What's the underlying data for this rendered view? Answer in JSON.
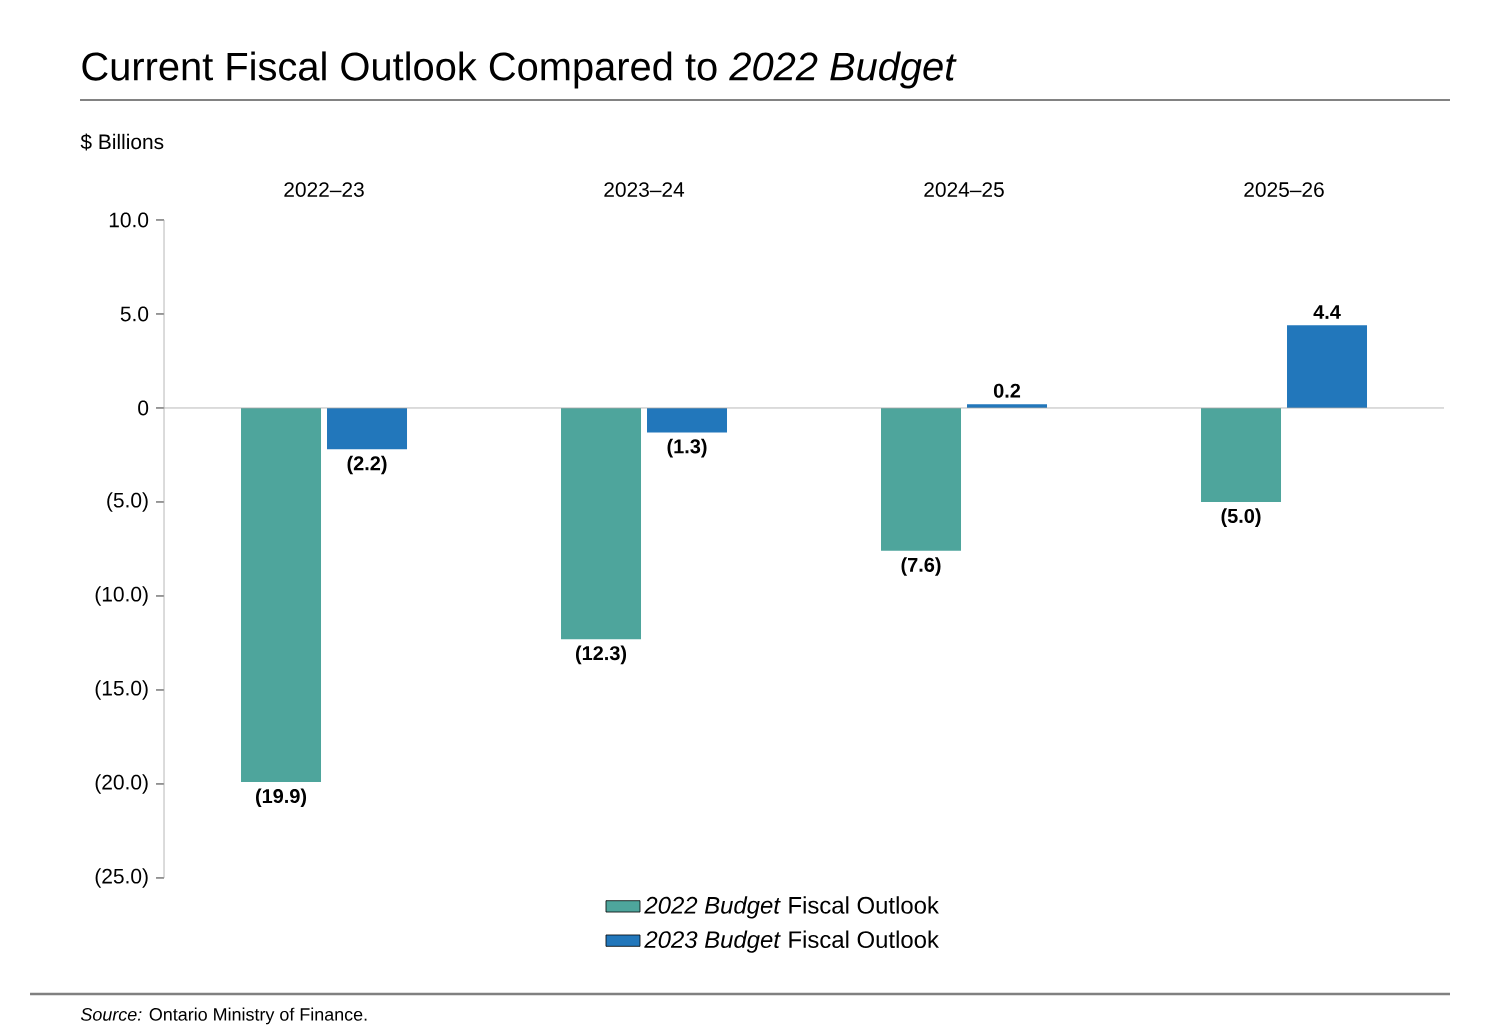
{
  "chart_data": {
    "type": "bar",
    "title": "Current Fiscal Outlook Compared to *2022 Budget*",
    "ylabel": "$ Billions",
    "categories": [
      "2022–23",
      "2023–24",
      "2024–25",
      "2025–26"
    ],
    "series": [
      {
        "name": "*2022 Budget* Fiscal Outlook",
        "color": "#4ea59c",
        "values": [
          -19.9,
          -12.3,
          -7.6,
          -5.0
        ],
        "value_labels": [
          "(19.9)",
          "(12.3)",
          "(7.6)",
          "(5.0)"
        ]
      },
      {
        "name": "*2023 Budget* Fiscal Outlook",
        "color": "#2277bb",
        "values": [
          -2.2,
          -1.3,
          0.2,
          4.4
        ],
        "value_labels": [
          "(2.2)",
          "(1.3)",
          "0.2",
          "4.4"
        ]
      }
    ],
    "ylim": [
      -25,
      10
    ],
    "yticks": [
      {
        "value": 10,
        "label": "10.0"
      },
      {
        "value": 5,
        "label": "5.0"
      },
      0,
      {
        "value": -5,
        "label": "(5.0)"
      },
      {
        "value": -10,
        "label": "(10.0)"
      },
      {
        "value": -15,
        "label": "(15.0)"
      },
      {
        "value": -20,
        "label": "(20.0)"
      },
      {
        "value": -25,
        "label": "(25.0)"
      }
    ],
    "legend": "bottom",
    "annotations": [
      "*Source:* Ontario Ministry of Finance."
    ]
  }
}
